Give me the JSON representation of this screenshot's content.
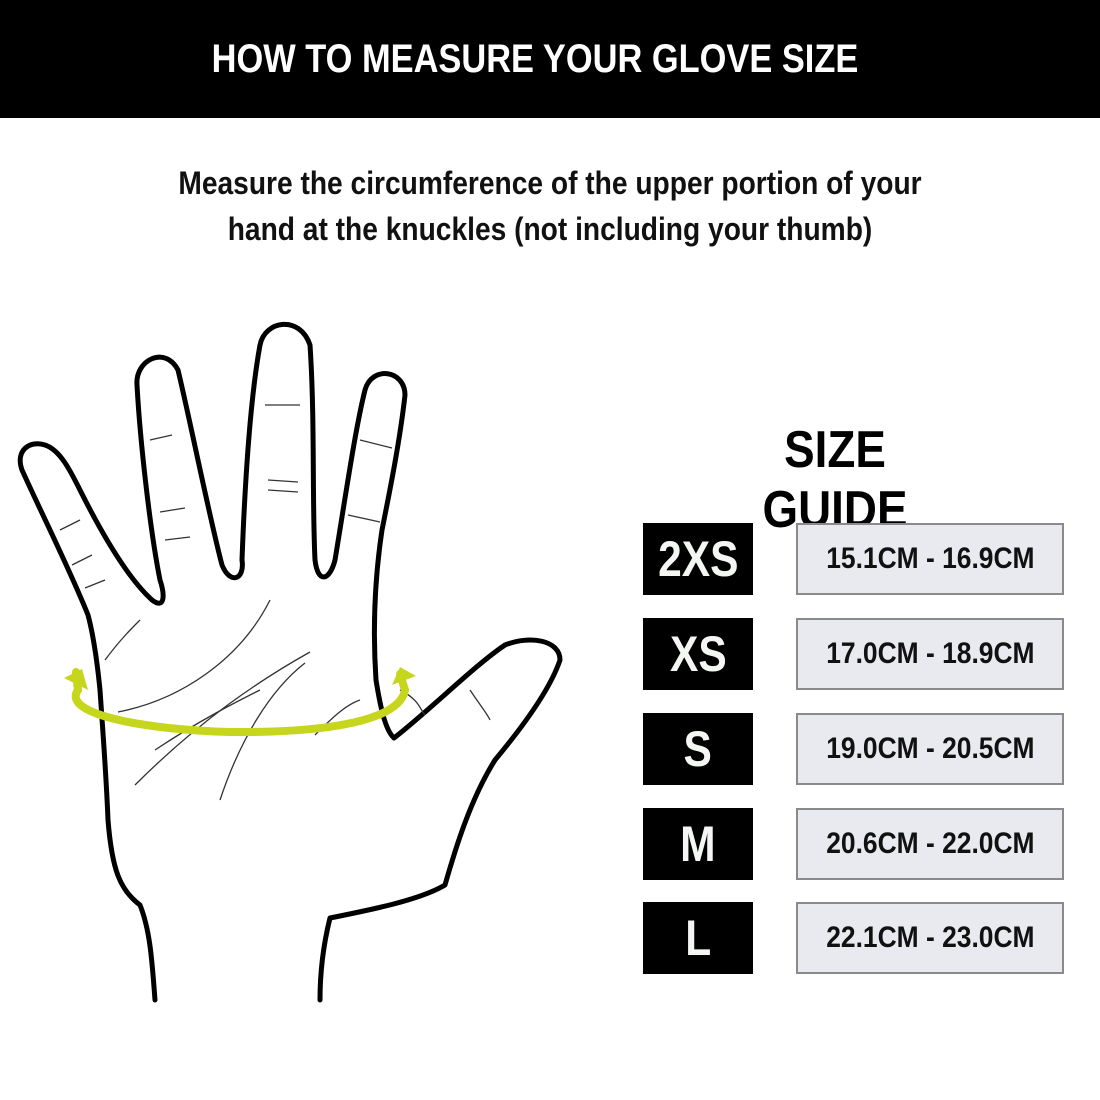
{
  "header": {
    "title": "HOW TO MEASURE YOUR GLOVE SIZE"
  },
  "instructions": "Measure the circumference of the upper portion of your hand at the knuckles (not including your thumb)",
  "illustration": {
    "subject": "hand-outline",
    "accent_color": "#c6d61c"
  },
  "size_guide": {
    "title": "SIZE GUIDE",
    "rows": [
      {
        "size": "2XS",
        "range": "15.1CM - 16.9CM"
      },
      {
        "size": "XS",
        "range": "17.0CM - 18.9CM"
      },
      {
        "size": "S",
        "range": "19.0CM - 20.5CM"
      },
      {
        "size": "M",
        "range": "20.6CM - 22.0CM"
      },
      {
        "size": "L",
        "range": "22.1CM - 23.0CM"
      }
    ]
  }
}
